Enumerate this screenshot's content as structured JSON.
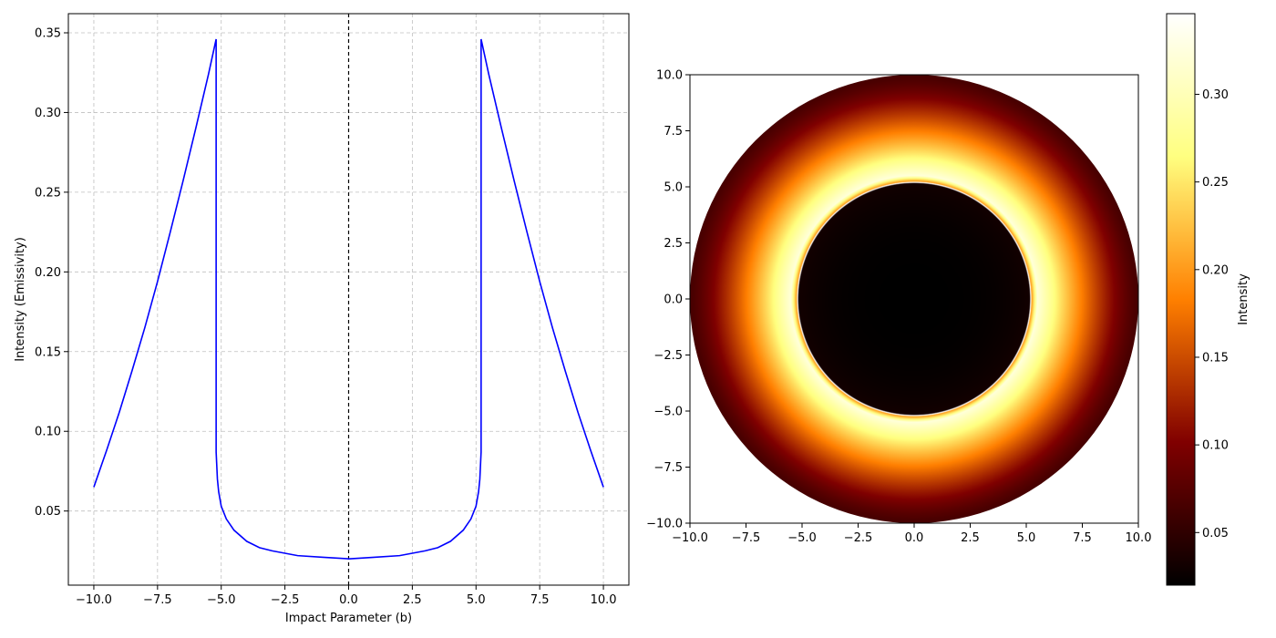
{
  "chart_data": [
    {
      "type": "line",
      "title": "",
      "xlabel": "Impact Parameter (b)",
      "ylabel": "Intensity (Emissivity)",
      "xlim": [
        -11,
        11
      ],
      "ylim": [
        0.0035,
        0.362
      ],
      "xticks": [
        -10.0,
        -7.5,
        -5.0,
        -2.5,
        0.0,
        2.5,
        5.0,
        7.5,
        10.0
      ],
      "xtick_labels": [
        "−10.0",
        "−7.5",
        "−5.0",
        "−2.5",
        "0.0",
        "2.5",
        "5.0",
        "7.5",
        "10.0"
      ],
      "yticks": [
        0.05,
        0.1,
        0.15,
        0.2,
        0.25,
        0.3,
        0.35
      ],
      "ytick_labels": [
        "0.05",
        "0.10",
        "0.15",
        "0.20",
        "0.25",
        "0.30",
        "0.35"
      ],
      "grid": true,
      "reference_line": {
        "x": 0,
        "style": "dashed",
        "color": "#000000"
      },
      "series": [
        {
          "color": "#0000ff",
          "x": [
            -10.0,
            -9.5,
            -9.0,
            -8.5,
            -8.0,
            -7.5,
            -7.0,
            -6.5,
            -6.0,
            -5.5,
            -5.2,
            -5.2,
            -5.15,
            -5.1,
            -5.0,
            -4.8,
            -4.5,
            -4.0,
            -3.5,
            -3.0,
            -2.0,
            -1.0,
            0.0,
            1.0,
            2.0,
            3.0,
            3.5,
            4.0,
            4.5,
            4.8,
            5.0,
            5.1,
            5.15,
            5.2,
            5.2,
            5.5,
            6.0,
            6.5,
            7.0,
            7.5,
            8.0,
            8.5,
            9.0,
            9.5,
            10.0
          ],
          "y": [
            0.065,
            0.088,
            0.112,
            0.138,
            0.165,
            0.194,
            0.225,
            0.257,
            0.29,
            0.324,
            0.346,
            0.087,
            0.07,
            0.062,
            0.053,
            0.045,
            0.038,
            0.031,
            0.027,
            0.025,
            0.022,
            0.021,
            0.02,
            0.021,
            0.022,
            0.025,
            0.027,
            0.031,
            0.038,
            0.045,
            0.053,
            0.062,
            0.07,
            0.087,
            0.346,
            0.324,
            0.29,
            0.257,
            0.225,
            0.194,
            0.165,
            0.138,
            0.112,
            0.088,
            0.065
          ]
        }
      ]
    },
    {
      "type": "heatmap",
      "title": "",
      "xlim": [
        -10,
        10
      ],
      "ylim": [
        -10,
        10
      ],
      "xticks": [
        -10.0,
        -7.5,
        -5.0,
        -2.5,
        0.0,
        2.5,
        5.0,
        7.5,
        10.0
      ],
      "xtick_labels": [
        "−10.0",
        "−7.5",
        "−5.0",
        "−2.5",
        "0.0",
        "2.5",
        "5.0",
        "7.5",
        "10.0"
      ],
      "yticks": [
        -10.0,
        -7.5,
        -5.0,
        -2.5,
        0.0,
        2.5,
        5.0,
        7.5,
        10.0
      ],
      "ytick_labels": [
        "−10.0",
        "−7.5",
        "−5.0",
        "−2.5",
        "0.0",
        "2.5",
        "5.0",
        "7.5",
        "10.0"
      ],
      "grid": false,
      "colormap": "afmhot",
      "colormap_stops": [
        "#000000",
        "#800000",
        "#ff8000",
        "#ffff80",
        "#ffffff"
      ],
      "outer_radius": 10,
      "shadow_radius": 5.2,
      "peak_radius": 6.0,
      "colorbar": {
        "label": "Intensity",
        "vmin": 0.02,
        "vmax": 0.346,
        "ticks": [
          0.05,
          0.1,
          0.15,
          0.2,
          0.25,
          0.3
        ],
        "tick_labels": [
          "0.05",
          "0.10",
          "0.15",
          "0.20",
          "0.25",
          "0.30"
        ]
      }
    }
  ]
}
